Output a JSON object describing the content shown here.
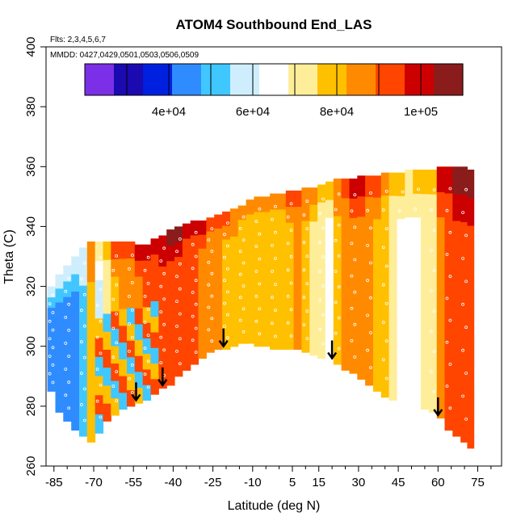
{
  "chart_data": {
    "type": "heatmap",
    "title": "ATOM4 Southbound End_LAS",
    "subtitle_flights": "Flts: 2,3,4,5,6,7",
    "subtitle_dates": "MMDD: 0427,0429,0501,0503,0506,0509",
    "xlabel": "Latitude (deg N)",
    "ylabel": "Theta (C)",
    "xlim": [
      -88,
      84
    ],
    "ylim": [
      260,
      400
    ],
    "x_ticks": [
      -85,
      -70,
      -55,
      -40,
      -25,
      -10,
      5,
      15,
      30,
      45,
      60,
      75
    ],
    "x_minor_ticks": [
      -80,
      -75,
      -65,
      -60,
      -50,
      -45,
      -35,
      -30,
      -20,
      -15,
      -5,
      0,
      10,
      20,
      25,
      35,
      40,
      50,
      55,
      65,
      70,
      80
    ],
    "y_ticks": [
      260,
      280,
      300,
      320,
      340,
      360,
      380,
      400
    ],
    "colorbar": {
      "range": [
        20000,
        110000
      ],
      "tick_values": [
        40000,
        60000,
        80000,
        100000
      ],
      "tick_labels": [
        "4e+04",
        "6e+04",
        "8e+04",
        "1e+05"
      ],
      "boundaries": [
        30000,
        40000,
        50000,
        60000,
        70000,
        80000,
        90000,
        100000
      ],
      "colors": [
        "#7b2fe6",
        "#1a0ab0",
        "#0020e0",
        "#2f8cff",
        "#41c7ff",
        "#cfeefd",
        "#ffffff",
        "#ffee99",
        "#ffc000",
        "#ff8a00",
        "#ff4500",
        "#cc0000",
        "#8a1c1c"
      ]
    },
    "arrows_x": [
      -54,
      -44,
      -21,
      20,
      60
    ],
    "x_profiles": [
      -86,
      -83,
      -80,
      -77,
      -74,
      -71,
      -68,
      -65,
      -62,
      -59,
      -56,
      -53,
      -50,
      -47,
      -44,
      -41,
      -38,
      -35,
      -32,
      -29,
      -26,
      -23,
      -20,
      -17,
      -14,
      -11,
      -8,
      -5,
      -2,
      1,
      4,
      7,
      10,
      13,
      16,
      19,
      22,
      25,
      28,
      31,
      34,
      37,
      40,
      43,
      46,
      49,
      52,
      55,
      58,
      61,
      64,
      67,
      70,
      72
    ],
    "theta_top": [
      320,
      324,
      327,
      330,
      333,
      335,
      335,
      335,
      335,
      335,
      335,
      334,
      334,
      336,
      337,
      339,
      340,
      341,
      342,
      342,
      343,
      344,
      345,
      346,
      347,
      349,
      350,
      350,
      351,
      351,
      352,
      352,
      353,
      353,
      354,
      355,
      356,
      356,
      356,
      357,
      357,
      357,
      358,
      358,
      358,
      359,
      359,
      359,
      359,
      360,
      360,
      360,
      360,
      359
    ],
    "theta_bottom": [
      285,
      278,
      275,
      272,
      270,
      268,
      271,
      275,
      277,
      279,
      280,
      281,
      282,
      284,
      286,
      287,
      290,
      292,
      294,
      296,
      298,
      299,
      299,
      300,
      301,
      301,
      300,
      300,
      299,
      299,
      299,
      299,
      298,
      297,
      296,
      295,
      294,
      292,
      291,
      289,
      287,
      285,
      283,
      282,
      281,
      280,
      280,
      279,
      278,
      276,
      272,
      270,
      268,
      266
    ],
    "value_profile": [
      46000,
      47000,
      47000,
      47000,
      52000,
      80000,
      60000,
      70000,
      82000,
      85000,
      86000,
      88000,
      90000,
      92000,
      94000,
      95000,
      96000,
      93000,
      90000,
      88000,
      85000,
      84000,
      82000,
      80000,
      79000,
      78000,
      77000,
      77000,
      76000,
      78000,
      82000,
      85000,
      80000,
      74000,
      70000,
      68000,
      80000,
      86000,
      88000,
      88000,
      86000,
      82000,
      77000,
      72000,
      68000,
      66000,
      68000,
      72000,
      70000,
      88000,
      92000,
      95000,
      96000,
      95000
    ]
  }
}
